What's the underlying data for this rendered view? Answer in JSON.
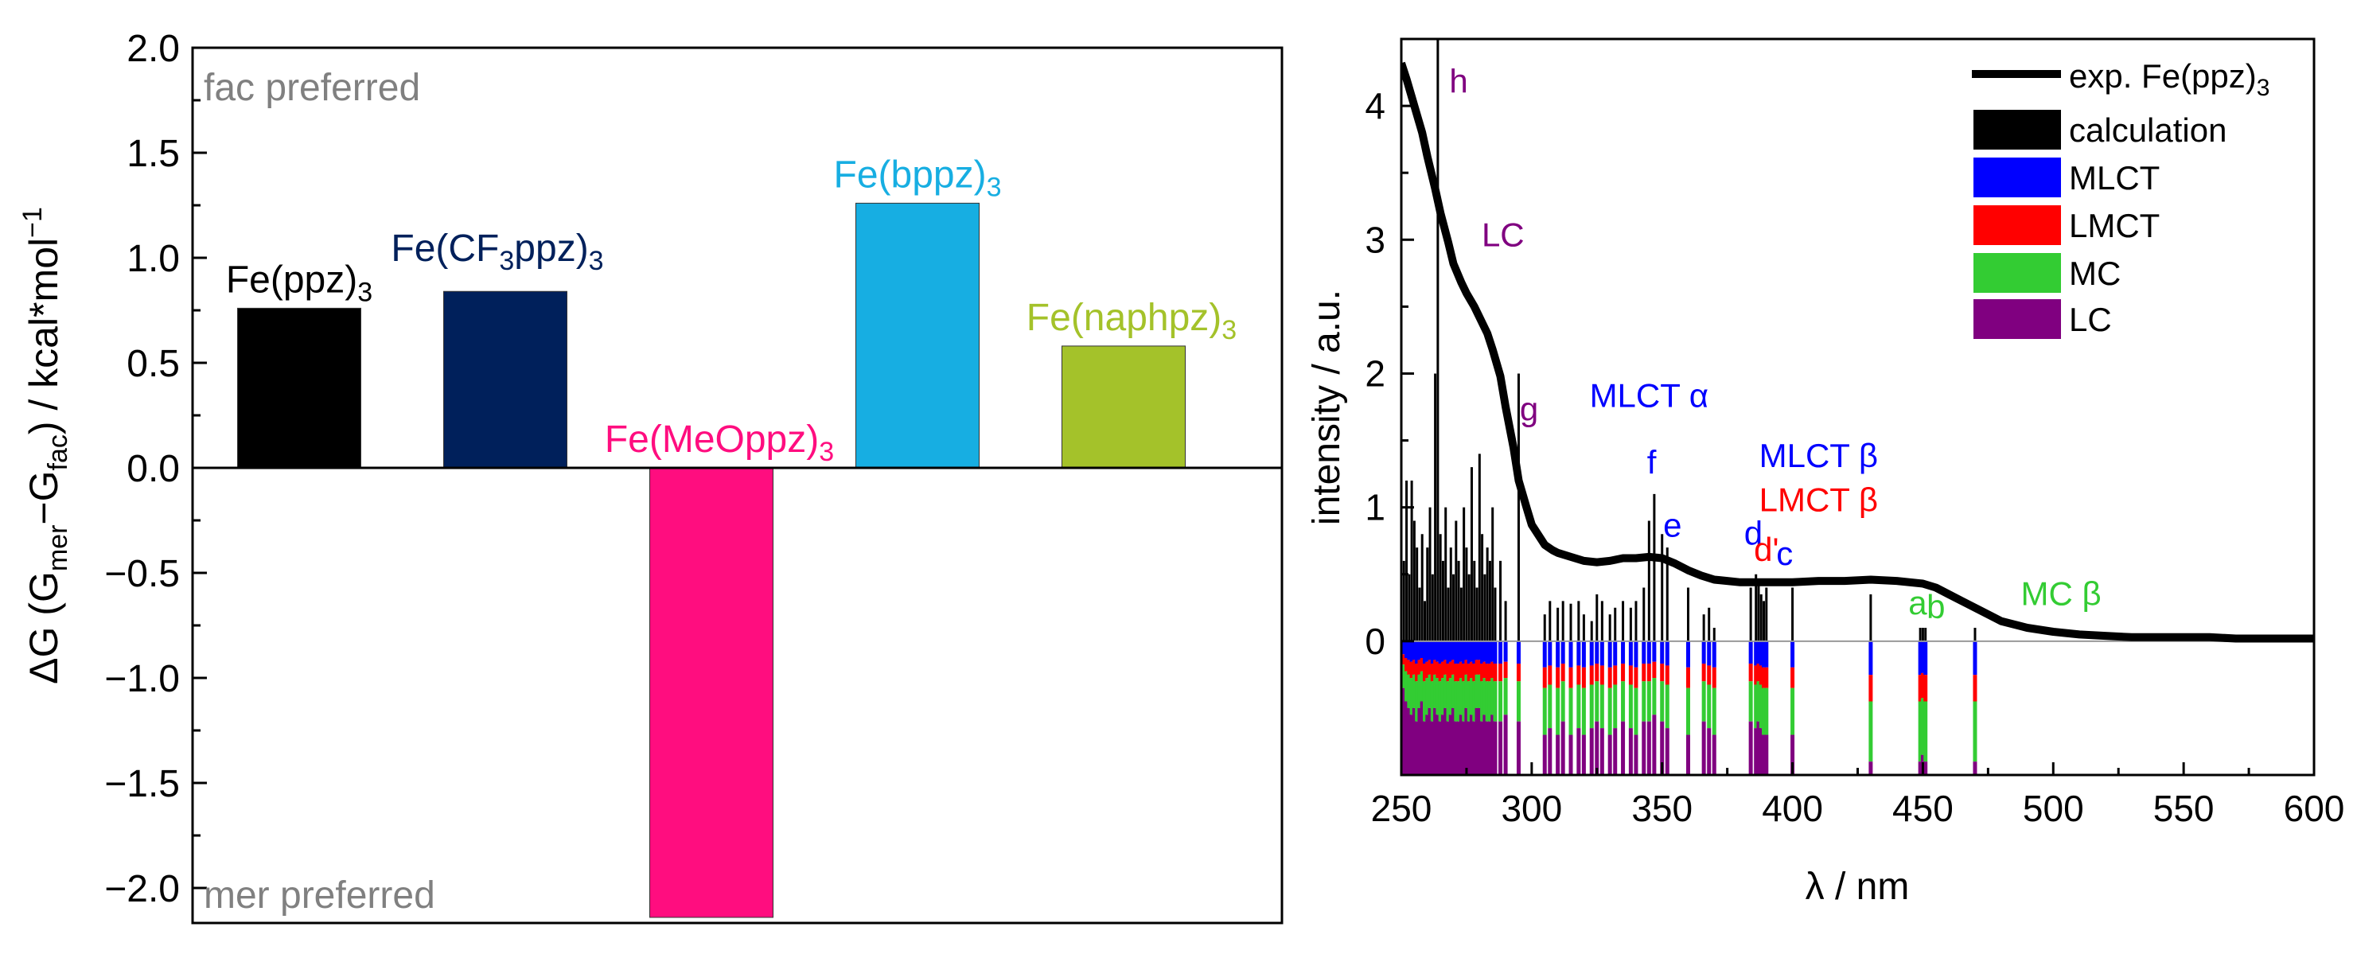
{
  "colors": {
    "axis": "#000000",
    "zero_line": "#999999",
    "note": "#808080",
    "calc": "#000000",
    "mlct": "#0000ff",
    "lmct": "#ff0000",
    "mc": "#33cc33",
    "lc": "#800080"
  },
  "chart_data": [
    {
      "type": "bar",
      "ylabel": "ΔG (Gmer−Gfac) / kcal*mol−1",
      "ylim": [
        -2.2,
        2.0
      ],
      "ticks": [
        "2.0",
        "1.5",
        "1.0",
        "0.5",
        "0.0",
        "-0.5",
        "-1.0",
        "-1.5",
        "-2.0"
      ],
      "tick_values": [
        2.0,
        1.5,
        1.0,
        0.5,
        0.0,
        -0.5,
        -1.0,
        -1.5,
        -2.0
      ],
      "annotations": {
        "top": "fac preferred",
        "bottom": "mer preferred"
      },
      "bars": [
        {
          "label": "Fe(ppz)3",
          "value": 0.76,
          "color": "#000000",
          "label_color": "#000000"
        },
        {
          "label": "Fe(CF3ppz)3",
          "value": 0.84,
          "color": "#00205b",
          "label_color": "#00205b"
        },
        {
          "label": "Fe(MeOppz)3",
          "value": -2.14,
          "color": "#ff0d7f",
          "label_color": "#ff0d7f"
        },
        {
          "label": "Fe(bppz)3",
          "value": 1.26,
          "color": "#17aee2",
          "label_color": "#17aee2"
        },
        {
          "label": "Fe(naphpz)3",
          "value": 0.58,
          "color": "#a4c22a",
          "label_color": "#a4c22a"
        }
      ]
    },
    {
      "type": "line",
      "xlabel": "λ / nm",
      "ylabel": "intensity / a.u.",
      "xlim": [
        250,
        600
      ],
      "ylim": [
        -1.0,
        4.5
      ],
      "xticks": [
        "250",
        "300",
        "350",
        "400",
        "450",
        "500",
        "550",
        "600"
      ],
      "yticks": [
        "0",
        "1",
        "2",
        "3",
        "4"
      ],
      "legend": [
        "exp. Fe(ppz)3",
        "calculation",
        "MLCT",
        "LMCT",
        "MC",
        "LC"
      ],
      "experimental": {
        "name": "exp. Fe(ppz)3",
        "x": [
          250,
          252,
          255,
          258,
          260,
          263,
          265,
          268,
          270,
          273,
          275,
          278,
          280,
          283,
          285,
          288,
          290,
          293,
          295,
          298,
          300,
          303,
          305,
          308,
          310,
          315,
          320,
          325,
          330,
          335,
          340,
          345,
          350,
          355,
          360,
          365,
          370,
          375,
          380,
          385,
          390,
          395,
          400,
          410,
          420,
          430,
          440,
          450,
          455,
          460,
          465,
          470,
          475,
          480,
          490,
          500,
          510,
          520,
          530,
          540,
          550,
          560,
          570,
          580,
          590,
          600
        ],
        "y": [
          4.32,
          4.2,
          4.0,
          3.8,
          3.62,
          3.38,
          3.2,
          2.98,
          2.82,
          2.68,
          2.6,
          2.5,
          2.42,
          2.3,
          2.18,
          1.98,
          1.75,
          1.45,
          1.2,
          1.0,
          0.87,
          0.78,
          0.72,
          0.68,
          0.66,
          0.63,
          0.6,
          0.59,
          0.6,
          0.62,
          0.62,
          0.63,
          0.62,
          0.58,
          0.53,
          0.49,
          0.46,
          0.45,
          0.44,
          0.44,
          0.44,
          0.44,
          0.44,
          0.45,
          0.45,
          0.46,
          0.45,
          0.43,
          0.4,
          0.35,
          0.3,
          0.25,
          0.2,
          0.15,
          0.1,
          0.07,
          0.05,
          0.04,
          0.03,
          0.03,
          0.03,
          0.03,
          0.02,
          0.02,
          0.02,
          0.02
        ]
      },
      "calculation": {
        "name": "calculation",
        "x": [
          251,
          252,
          253,
          254,
          255,
          256,
          257,
          258,
          259,
          260,
          261,
          262,
          263,
          264,
          265,
          266,
          267,
          268,
          269,
          270,
          271,
          272,
          273,
          274,
          275,
          276,
          277,
          278,
          279,
          280,
          281,
          282,
          283,
          284,
          285,
          286,
          288,
          290,
          295,
          305,
          307,
          310,
          312,
          315,
          318,
          320,
          323,
          325,
          327,
          330,
          332,
          335,
          338,
          340,
          343,
          345,
          347,
          350,
          352,
          360,
          366,
          368,
          370,
          384,
          386,
          387,
          388,
          389,
          390,
          400,
          430,
          449,
          450,
          451,
          470
        ],
        "heights": [
          0.6,
          1.2,
          0.5,
          1.2,
          0.9,
          0.7,
          0.4,
          0.8,
          0.3,
          0.7,
          1.0,
          0.5,
          2.0,
          4.5,
          0.8,
          0.6,
          1.0,
          0.4,
          0.7,
          0.5,
          0.9,
          0.6,
          0.4,
          1.0,
          0.7,
          0.5,
          1.3,
          0.6,
          0.4,
          1.4,
          0.8,
          0.5,
          0.7,
          0.6,
          1.0,
          0.4,
          0.6,
          0.3,
          2.0,
          0.2,
          0.3,
          0.25,
          0.3,
          0.28,
          0.3,
          0.2,
          0.15,
          0.35,
          0.3,
          0.2,
          0.25,
          0.3,
          0.25,
          0.3,
          0.4,
          0.9,
          1.1,
          0.8,
          0.7,
          0.4,
          0.2,
          0.25,
          0.1,
          0.4,
          0.5,
          0.45,
          0.35,
          0.3,
          0.4,
          0.4,
          0.35,
          0.1,
          0.1,
          0.1,
          0.1
        ],
        "lower_fractions": [
          0.35,
          0.45,
          0.5,
          0.55,
          0.5,
          0.6,
          0.5,
          0.45,
          0.6,
          0.55,
          0.5,
          0.6,
          0.5,
          0.55,
          0.6,
          0.55,
          0.5,
          0.6,
          0.55,
          0.5,
          0.6,
          0.6,
          0.55,
          0.6,
          0.5,
          0.6,
          0.55,
          0.6,
          0.5,
          0.5,
          0.6,
          0.55,
          0.6,
          0.6,
          0.55,
          0.6,
          0.6,
          0.55,
          0.6,
          0.7,
          0.65,
          0.7,
          0.6,
          0.7,
          0.65,
          0.7,
          0.65,
          0.6,
          0.65,
          0.7,
          0.65,
          0.6,
          0.65,
          0.7,
          0.6,
          0.6,
          0.55,
          0.6,
          0.65,
          0.7,
          0.6,
          0.65,
          0.7,
          0.6,
          0.65,
          0.6,
          0.65,
          0.7,
          0.7,
          0.7,
          0.9,
          0.9,
          0.85,
          0.9,
          0.9
        ]
      },
      "peak_labels": [
        {
          "text": "h",
          "x": 272,
          "y": 4.1,
          "color": "#800080"
        },
        {
          "text": "LC",
          "x": 289,
          "y": 2.95,
          "color": "#800080"
        },
        {
          "text": "g",
          "x": 299,
          "y": 1.65,
          "color": "#800080"
        },
        {
          "text": "MLCT α",
          "x": 345,
          "y": 1.75,
          "color": "#0000ff"
        },
        {
          "text": "f",
          "x": 346,
          "y": 1.25,
          "color": "#0000ff"
        },
        {
          "text": "e",
          "x": 354,
          "y": 0.78,
          "color": "#0000ff"
        },
        {
          "text": "MLCT β",
          "x": 410,
          "y": 1.3,
          "color": "#0000ff"
        },
        {
          "text": "LMCT β",
          "x": 410,
          "y": 0.97,
          "color": "#ff0000"
        },
        {
          "text": "d",
          "x": 385,
          "y": 0.72,
          "color": "#0000ff"
        },
        {
          "text": "d'",
          "x": 390,
          "y": 0.6,
          "color": "#ff0000"
        },
        {
          "text": "c",
          "x": 397,
          "y": 0.57,
          "color": "#0000ff"
        },
        {
          "text": "a",
          "x": 448,
          "y": 0.2,
          "color": "#33cc33"
        },
        {
          "text": "b",
          "x": 455,
          "y": 0.17,
          "color": "#33cc33"
        },
        {
          "text": "MC β",
          "x": 503,
          "y": 0.27,
          "color": "#33cc33"
        }
      ]
    }
  ]
}
